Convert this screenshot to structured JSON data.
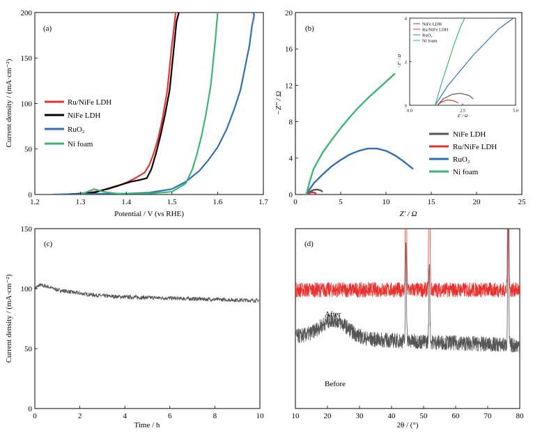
{
  "chart_data": [
    {
      "id": "a",
      "type": "line",
      "panel_label": "(a)",
      "xlabel": "Potential / V (vs RHE)",
      "ylabel": "Current density / (mA·cm⁻²)",
      "xlim": [
        1.2,
        1.7
      ],
      "ylim": [
        0,
        200
      ],
      "xticks": [
        "1.2",
        "1.3",
        "1.4",
        "1.5",
        "1.6",
        "1.7"
      ],
      "yticks": [
        "0",
        "50",
        "100",
        "150",
        "200"
      ],
      "legend_position": "center-left",
      "series": [
        {
          "name": "Ru/NiFe LDH",
          "color": "#e8312f",
          "points": [
            [
              1.26,
              0
            ],
            [
              1.3,
              1
            ],
            [
              1.33,
              3
            ],
            [
              1.36,
              6
            ],
            [
              1.38,
              9
            ],
            [
              1.4,
              13
            ],
            [
              1.42,
              18
            ],
            [
              1.44,
              24
            ],
            [
              1.45,
              32
            ],
            [
              1.46,
              45
            ],
            [
              1.47,
              62
            ],
            [
              1.48,
              85
            ],
            [
              1.49,
              115
            ],
            [
              1.495,
              140
            ],
            [
              1.5,
              165
            ],
            [
              1.505,
              185
            ],
            [
              1.508,
              200
            ]
          ]
        },
        {
          "name": "NiFe LDH",
          "color": "#000000",
          "points": [
            [
              1.26,
              0
            ],
            [
              1.3,
              1
            ],
            [
              1.33,
              2
            ],
            [
              1.35,
              5
            ],
            [
              1.37,
              8
            ],
            [
              1.39,
              11
            ],
            [
              1.41,
              14
            ],
            [
              1.43,
              16
            ],
            [
              1.445,
              18
            ],
            [
              1.455,
              28
            ],
            [
              1.465,
              45
            ],
            [
              1.475,
              65
            ],
            [
              1.485,
              88
            ],
            [
              1.495,
              115
            ],
            [
              1.5,
              140
            ],
            [
              1.505,
              165
            ],
            [
              1.51,
              190
            ],
            [
              1.515,
              200
            ]
          ]
        },
        {
          "name": "RuO₂",
          "color": "#2f6fb5",
          "points": [
            [
              1.24,
              0
            ],
            [
              1.3,
              0.5
            ],
            [
              1.4,
              1
            ],
            [
              1.45,
              2
            ],
            [
              1.5,
              6
            ],
            [
              1.53,
              14
            ],
            [
              1.56,
              26
            ],
            [
              1.58,
              38
            ],
            [
              1.6,
              52
            ],
            [
              1.62,
              72
            ],
            [
              1.635,
              92
            ],
            [
              1.65,
              115
            ],
            [
              1.66,
              140
            ],
            [
              1.67,
              165
            ],
            [
              1.675,
              185
            ],
            [
              1.68,
              197
            ],
            [
              1.678,
              200
            ]
          ]
        },
        {
          "name": "Ni foam",
          "color": "#3cb574",
          "points": [
            [
              1.3,
              0
            ],
            [
              1.33,
              6
            ],
            [
              1.35,
              3
            ],
            [
              1.38,
              1
            ],
            [
              1.45,
              1
            ],
            [
              1.5,
              3
            ],
            [
              1.53,
              12
            ],
            [
              1.545,
              28
            ],
            [
              1.555,
              45
            ],
            [
              1.565,
              65
            ],
            [
              1.575,
              90
            ],
            [
              1.585,
              120
            ],
            [
              1.59,
              145
            ],
            [
              1.595,
              170
            ],
            [
              1.6,
              200
            ]
          ]
        }
      ]
    },
    {
      "id": "b",
      "type": "line",
      "panel_label": "(b)",
      "xlabel": "Z′ / Ω",
      "ylabel": "−Z″ / Ω",
      "xlim": [
        0,
        25
      ],
      "ylim": [
        0,
        20
      ],
      "xticks": [
        "0",
        "5",
        "10",
        "15",
        "20",
        "25"
      ],
      "yticks": [
        "0",
        "4",
        "8",
        "12",
        "16",
        "20"
      ],
      "legend_position": "bottom-right",
      "series": [
        {
          "name": "NiFe LDH",
          "color": "#555555",
          "points": [
            [
              1.3,
              0
            ],
            [
              1.6,
              0.3
            ],
            [
              2.0,
              0.5
            ],
            [
              2.4,
              0.55
            ],
            [
              2.8,
              0.45
            ],
            [
              3.0,
              0.3
            ]
          ]
        },
        {
          "name": "Ru/NiFe LDH",
          "color": "#e8312f",
          "points": [
            [
              1.3,
              0
            ],
            [
              1.5,
              0.15
            ],
            [
              1.8,
              0.25
            ],
            [
              2.1,
              0.2
            ],
            [
              2.3,
              0.1
            ]
          ]
        },
        {
          "name": "RuO₂",
          "color": "#2f6fb5",
          "points": [
            [
              1.2,
              0
            ],
            [
              2,
              1.2
            ],
            [
              3,
              2.2
            ],
            [
              4,
              3.1
            ],
            [
              5,
              3.8
            ],
            [
              6,
              4.4
            ],
            [
              7,
              4.8
            ],
            [
              8,
              5.05
            ],
            [
              9,
              5.05
            ],
            [
              10,
              4.8
            ],
            [
              11,
              4.3
            ],
            [
              12,
              3.6
            ],
            [
              13,
              2.8
            ]
          ]
        },
        {
          "name": "Ni foam",
          "color": "#3cb574",
          "points": [
            [
              1.2,
              0
            ],
            [
              1.6,
              1.5
            ],
            [
              2,
              2.8
            ],
            [
              3,
              4.6
            ],
            [
              4,
              6.0
            ],
            [
              5,
              7.3
            ],
            [
              6,
              8.5
            ],
            [
              7,
              9.6
            ],
            [
              8,
              10.6
            ],
            [
              9,
              11.5
            ],
            [
              10,
              12.4
            ],
            [
              11,
              13.3
            ]
          ]
        }
      ],
      "inset": {
        "xlabel": "Z′ / Ω",
        "ylabel": "−Z″ / Ω",
        "xlim": [
          0,
          5
        ],
        "ylim": [
          0,
          4
        ],
        "xticks": [
          "0.0",
          "2.5",
          "5.0"
        ],
        "yticks": [
          "0",
          "2",
          "4"
        ],
        "legend_position": "top-left",
        "series": [
          {
            "name": "NiFe LDH",
            "color": "#555555",
            "points": [
              [
                1.3,
                0
              ],
              [
                1.6,
                0.3
              ],
              [
                2.0,
                0.5
              ],
              [
                2.4,
                0.55
              ],
              [
                2.8,
                0.45
              ],
              [
                3.0,
                0.3
              ]
            ]
          },
          {
            "name": "Ru/NiFe LDH",
            "color": "#e8312f",
            "points": [
              [
                1.3,
                0
              ],
              [
                1.5,
                0.15
              ],
              [
                1.8,
                0.25
              ],
              [
                2.1,
                0.2
              ],
              [
                2.3,
                0.1
              ]
            ]
          },
          {
            "name": "RuO₂",
            "color": "#2f6fb5",
            "points": [
              [
                1.2,
                0
              ],
              [
                1.8,
                0.9
              ],
              [
                2.4,
                1.6
              ],
              [
                3.0,
                2.3
              ],
              [
                3.6,
                2.9
              ],
              [
                4.2,
                3.5
              ],
              [
                4.9,
                4.0
              ]
            ]
          },
          {
            "name": "Ni foam",
            "color": "#3cb574",
            "points": [
              [
                1.2,
                0
              ],
              [
                1.5,
                1.0
              ],
              [
                1.8,
                1.9
              ],
              [
                2.1,
                2.8
              ],
              [
                2.4,
                3.6
              ],
              [
                2.6,
                4.0
              ]
            ]
          }
        ]
      }
    },
    {
      "id": "c",
      "type": "line",
      "panel_label": "(c)",
      "xlabel": "Time / h",
      "ylabel": "Current density / (mA·cm⁻²)",
      "xlim": [
        0,
        10
      ],
      "ylim": [
        0,
        150
      ],
      "xticks": [
        "0",
        "2",
        "4",
        "6",
        "8",
        "10"
      ],
      "yticks": [
        "0",
        "50",
        "100",
        "150"
      ],
      "series": [
        {
          "color": "#555555",
          "points": [
            [
              0,
              100
            ],
            [
              0.2,
              103
            ],
            [
              0.5,
              102
            ],
            [
              1,
              99
            ],
            [
              2,
              96
            ],
            [
              3,
              94
            ],
            [
              4,
              93
            ],
            [
              5,
              92.5
            ],
            [
              6,
              92
            ],
            [
              7,
              91.5
            ],
            [
              8,
              91
            ],
            [
              9,
              90.5
            ],
            [
              10,
              90
            ]
          ]
        }
      ]
    },
    {
      "id": "d",
      "type": "line",
      "panel_label": "(d)",
      "xlabel": "2θ / (°)",
      "ylabel": "",
      "xlim": [
        10,
        80
      ],
      "xticks": [
        "10",
        "20",
        "30",
        "40",
        "50",
        "60",
        "70",
        "80"
      ],
      "series": [
        {
          "name": "After",
          "color": "#e8312f",
          "baseline": 0.66,
          "peaks": [
            [
              44.5,
              1.2
            ],
            [
              51.8,
              1.2
            ],
            [
              76.4,
              1.2
            ]
          ]
        },
        {
          "name": "Before",
          "color": "#555555",
          "baseline": 0.4,
          "peaks": [
            [
              44.5,
              0.55
            ],
            [
              51.8,
              0.45
            ],
            [
              76.4,
              0.75
            ]
          ]
        }
      ]
    }
  ]
}
